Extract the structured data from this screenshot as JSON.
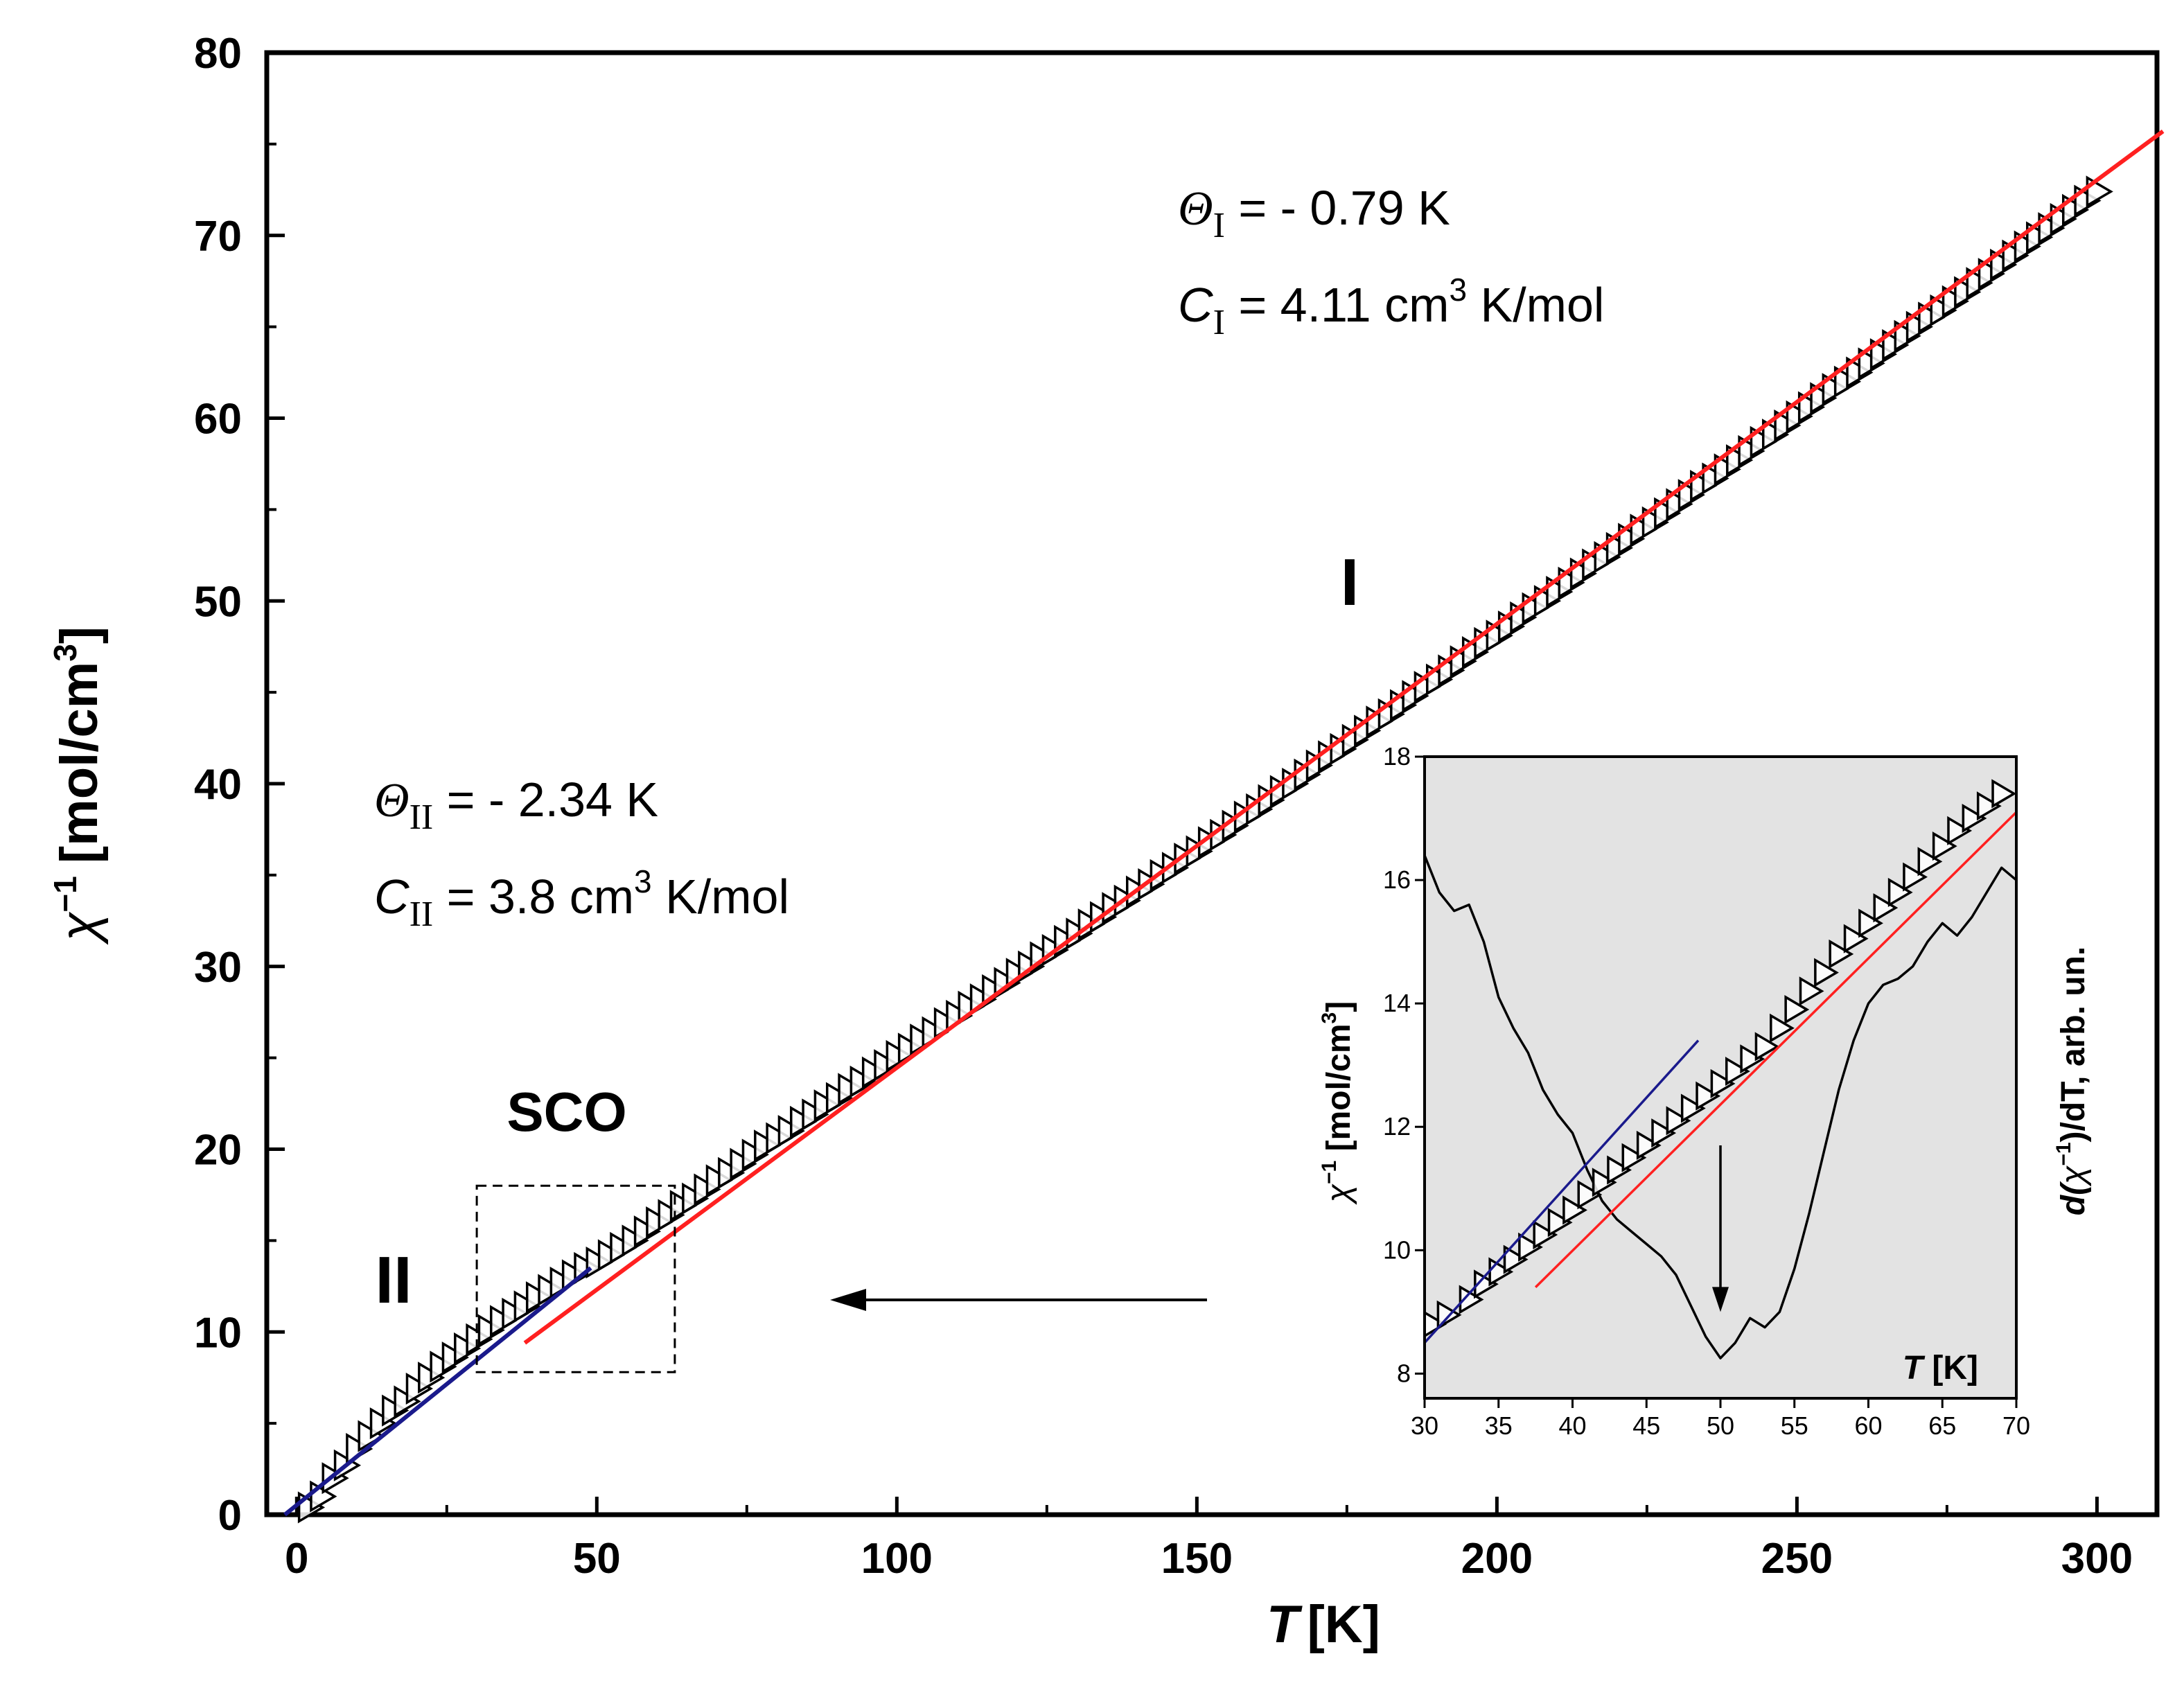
{
  "chart_data": [
    {
      "type": "scatter",
      "name": "main",
      "xlabel_symbol": "T",
      "xlabel_unit": "[K]",
      "ylabel_symbol": "χ",
      "ylabel_exp": "−1",
      "ylabel_unit": "[mol/cm",
      "ylabel_unit_exp": "3",
      "ylabel_close": "]",
      "xlim": [
        -5,
        310
      ],
      "ylim": [
        0,
        80
      ],
      "xticks": [
        "0",
        "50",
        "100",
        "150",
        "200",
        "250",
        "300"
      ],
      "yticks": [
        "0",
        "10",
        "20",
        "30",
        "40",
        "50",
        "60",
        "70",
        "80"
      ],
      "xtick_values": [
        0,
        50,
        100,
        150,
        200,
        250,
        300
      ],
      "ytick_values": [
        0,
        10,
        20,
        30,
        40,
        50,
        60,
        70,
        80
      ],
      "series": [
        {
          "name": "data",
          "marker": "triangle-right-open",
          "points": [
            [
              2,
              0.4
            ],
            [
              4,
              1.0
            ],
            [
              6,
              2.0
            ],
            [
              8,
              2.7
            ],
            [
              10,
              3.6
            ],
            [
              12,
              4.3
            ],
            [
              14,
              5.0
            ],
            [
              16,
              5.7
            ],
            [
              18,
              6.2
            ],
            [
              20,
              6.9
            ],
            [
              22,
              7.5
            ],
            [
              24,
              8.1
            ],
            [
              26,
              8.6
            ],
            [
              28,
              9.1
            ],
            [
              30,
              9.6
            ],
            [
              32,
              10.1
            ],
            [
              34,
              10.6
            ],
            [
              36,
              11.0
            ],
            [
              38,
              11.4
            ],
            [
              40,
              11.9
            ],
            [
              42,
              12.3
            ],
            [
              44,
              12.7
            ],
            [
              46,
              13.1
            ],
            [
              48,
              13.5
            ],
            [
              50,
              13.8
            ],
            [
              52,
              14.2
            ],
            [
              54,
              14.6
            ],
            [
              56,
              15.0
            ],
            [
              58,
              15.5
            ],
            [
              60,
              16.0
            ],
            [
              62,
              16.4
            ],
            [
              64,
              16.9
            ],
            [
              66,
              17.3
            ],
            [
              68,
              17.8
            ],
            [
              70,
              18.3
            ],
            [
              72,
              18.7
            ],
            [
              74,
              19.2
            ],
            [
              76,
              19.7
            ],
            [
              78,
              20.2
            ],
            [
              80,
              20.6
            ],
            [
              82,
              21.0
            ],
            [
              84,
              21.5
            ],
            [
              86,
              21.9
            ],
            [
              88,
              22.4
            ],
            [
              90,
              22.8
            ],
            [
              92,
              23.3
            ],
            [
              94,
              23.7
            ],
            [
              96,
              24.2
            ],
            [
              98,
              24.6
            ],
            [
              100,
              25.1
            ],
            [
              102,
              25.5
            ],
            [
              104,
              26.0
            ],
            [
              106,
              26.4
            ],
            [
              108,
              26.9
            ],
            [
              110,
              27.3
            ],
            [
              112,
              27.8
            ],
            [
              114,
              28.2
            ],
            [
              116,
              28.7
            ],
            [
              118,
              29.1
            ],
            [
              120,
              29.6
            ],
            [
              122,
              30.0
            ],
            [
              124,
              30.5
            ],
            [
              126,
              30.9
            ],
            [
              128,
              31.4
            ],
            [
              130,
              31.8
            ],
            [
              132,
              32.3
            ],
            [
              134,
              32.7
            ],
            [
              136,
              33.2
            ],
            [
              138,
              33.6
            ],
            [
              140,
              34.1
            ],
            [
              142,
              34.5
            ],
            [
              144,
              35.0
            ],
            [
              146,
              35.4
            ],
            [
              148,
              35.9
            ],
            [
              150,
              36.3
            ],
            [
              152,
              36.8
            ],
            [
              154,
              37.2
            ],
            [
              156,
              37.7
            ],
            [
              158,
              38.2
            ],
            [
              160,
              38.6
            ],
            [
              162,
              39.1
            ],
            [
              164,
              39.6
            ],
            [
              166,
              40.0
            ],
            [
              168,
              40.5
            ],
            [
              170,
              41.0
            ],
            [
              172,
              41.5
            ],
            [
              174,
              41.9
            ],
            [
              176,
              42.4
            ],
            [
              178,
              42.9
            ],
            [
              180,
              43.4
            ],
            [
              182,
              43.8
            ],
            [
              184,
              44.3
            ],
            [
              186,
              44.8
            ],
            [
              188,
              45.3
            ],
            [
              190,
              45.7
            ],
            [
              192,
              46.2
            ],
            [
              194,
              46.7
            ],
            [
              196,
              47.2
            ],
            [
              198,
              47.7
            ],
            [
              200,
              48.1
            ],
            [
              202,
              48.6
            ],
            [
              204,
              49.1
            ],
            [
              206,
              49.6
            ],
            [
              208,
              50.0
            ],
            [
              210,
              50.5
            ],
            [
              212,
              51.0
            ],
            [
              214,
              51.5
            ],
            [
              216,
              52.0
            ],
            [
              218,
              52.4
            ],
            [
              220,
              52.9
            ],
            [
              222,
              53.4
            ],
            [
              224,
              53.9
            ],
            [
              226,
              54.3
            ],
            [
              228,
              54.8
            ],
            [
              230,
              55.3
            ],
            [
              232,
              55.8
            ],
            [
              234,
              56.3
            ],
            [
              236,
              56.7
            ],
            [
              238,
              57.2
            ],
            [
              240,
              57.7
            ],
            [
              242,
              58.2
            ],
            [
              244,
              58.7
            ],
            [
              246,
              59.1
            ],
            [
              248,
              59.6
            ],
            [
              250,
              60.1
            ],
            [
              252,
              60.6
            ],
            [
              254,
              61.1
            ],
            [
              256,
              61.6
            ],
            [
              258,
              62.0
            ],
            [
              260,
              62.5
            ],
            [
              262,
              63.0
            ],
            [
              264,
              63.5
            ],
            [
              266,
              64.0
            ],
            [
              268,
              64.5
            ],
            [
              270,
              65.0
            ],
            [
              272,
              65.5
            ],
            [
              274,
              65.9
            ],
            [
              276,
              66.4
            ],
            [
              278,
              66.9
            ],
            [
              280,
              67.4
            ],
            [
              282,
              67.9
            ],
            [
              284,
              68.4
            ],
            [
              286,
              68.9
            ],
            [
              288,
              69.4
            ],
            [
              290,
              69.9
            ],
            [
              292,
              70.4
            ],
            [
              294,
              70.9
            ],
            [
              296,
              71.4
            ],
            [
              298,
              71.9
            ],
            [
              300,
              72.4
            ]
          ]
        },
        {
          "name": "fit-I",
          "color": "#ff2020",
          "x": [
            38,
            311
          ],
          "y": [
            9.4,
            75.7
          ]
        },
        {
          "name": "fit-II",
          "color": "#1a1a8c",
          "x": [
            -2,
            49
          ],
          "y": [
            0,
            13.5
          ]
        }
      ],
      "annotations": {
        "theta_I_symbol": "Θ",
        "theta_I_sub": "I",
        "theta_I_value": " = - 0.79 K",
        "c_I_symbol": "C",
        "c_I_sub": "I",
        "c_I_value": " = 4.11 cm",
        "c_I_exp": "3",
        "c_I_unit": " K/mol",
        "theta_II_symbol": "Θ",
        "theta_II_sub": "II",
        "theta_II_value": " = - 2.34 K",
        "c_II_symbol": "C",
        "c_II_sub": "II",
        "c_II_value": " = 3.8 cm",
        "c_II_exp": "3",
        "c_II_unit": " K/mol",
        "region_I": "I",
        "region_II": "II",
        "sco": "SCO"
      },
      "sco_box": {
        "x": [
          30,
          63
        ],
        "y": [
          7.8,
          18.0
        ]
      }
    },
    {
      "type": "scatter",
      "name": "inset",
      "xlim": [
        30,
        70
      ],
      "ylim": [
        7.6,
        18
      ],
      "xticks": [
        "30",
        "35",
        "40",
        "45",
        "50",
        "55",
        "60",
        "65",
        "70"
      ],
      "yticks": [
        "8",
        "10",
        "12",
        "14",
        "16",
        "18"
      ],
      "xtick_values": [
        30,
        35,
        40,
        45,
        50,
        55,
        60,
        65,
        70
      ],
      "ytick_values": [
        8,
        10,
        12,
        14,
        16,
        18
      ],
      "xlabel_symbol": "T",
      "xlabel_unit": " [K]",
      "ylabel_left_symbol": "χ",
      "ylabel_left_exp": "−1",
      "ylabel_left_unit": " [mol/cm",
      "ylabel_left_unit_exp": "3",
      "ylabel_left_close": "]",
      "ylabel_right_pre": "d(",
      "ylabel_right_symbol": "χ",
      "ylabel_right_exp": "−1",
      "ylabel_right_post": ")/dT, arb. un.",
      "background": "#e3e3e3",
      "series": [
        {
          "name": "data",
          "marker": "triangle-right-open",
          "points": [
            [
              30.5,
              8.8
            ],
            [
              31.5,
              8.95
            ],
            [
              33,
              9.2
            ],
            [
              34,
              9.45
            ],
            [
              35,
              9.65
            ],
            [
              36,
              9.85
            ],
            [
              37,
              10.05
            ],
            [
              38,
              10.25
            ],
            [
              39,
              10.45
            ],
            [
              40,
              10.65
            ],
            [
              41,
              10.9
            ],
            [
              42,
              11.1
            ],
            [
              43,
              11.3
            ],
            [
              44,
              11.5
            ],
            [
              45,
              11.7
            ],
            [
              46,
              11.9
            ],
            [
              47,
              12.1
            ],
            [
              48,
              12.3
            ],
            [
              49,
              12.5
            ],
            [
              50,
              12.7
            ],
            [
              51,
              12.9
            ],
            [
              52,
              13.1
            ],
            [
              53,
              13.3
            ],
            [
              54,
              13.6
            ],
            [
              55,
              13.9
            ],
            [
              56,
              14.2
            ],
            [
              57,
              14.5
            ],
            [
              58,
              14.8
            ],
            [
              59,
              15.05
            ],
            [
              60,
              15.3
            ],
            [
              61,
              15.55
            ],
            [
              62,
              15.8
            ],
            [
              63,
              16.05
            ],
            [
              64,
              16.3
            ],
            [
              65,
              16.55
            ],
            [
              66,
              16.8
            ],
            [
              67,
              17.0
            ],
            [
              68,
              17.2
            ],
            [
              69,
              17.4
            ]
          ]
        },
        {
          "name": "fit-I",
          "color": "#ff2020",
          "x": [
            37.5,
            70
          ],
          "y": [
            9.4,
            17.1
          ]
        },
        {
          "name": "fit-II",
          "color": "#1a1a8c",
          "x": [
            30,
            48.5
          ],
          "y": [
            8.5,
            13.4
          ]
        },
        {
          "name": "derivative",
          "color": "#000000",
          "x": [
            30,
            31,
            32,
            33,
            34,
            35,
            36,
            37,
            38,
            39,
            40,
            41,
            42,
            43,
            44,
            45,
            46,
            47,
            48,
            49,
            50,
            51,
            52,
            53,
            54,
            55,
            56,
            57,
            58,
            59,
            60,
            61,
            62,
            63,
            64,
            65,
            66,
            67,
            68,
            69,
            70
          ],
          "y": [
            16.4,
            15.8,
            15.5,
            15.6,
            15.0,
            14.1,
            13.6,
            13.2,
            12.6,
            12.2,
            11.9,
            11.3,
            10.8,
            10.5,
            10.3,
            10.1,
            9.9,
            9.6,
            9.1,
            8.6,
            8.25,
            8.5,
            8.9,
            8.75,
            9.0,
            9.7,
            10.6,
            11.6,
            12.6,
            13.4,
            14.0,
            14.3,
            14.4,
            14.6,
            15.0,
            15.3,
            15.1,
            15.4,
            15.8,
            16.2,
            16.0
          ]
        }
      ],
      "arrow_x": 50,
      "arrow_y": [
        11.7,
        9.0
      ]
    }
  ]
}
